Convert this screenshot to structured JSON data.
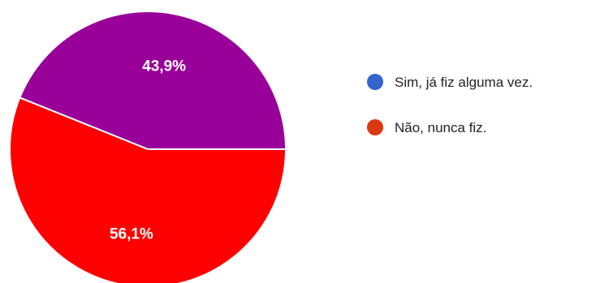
{
  "chart_data": {
    "type": "pie",
    "start_angle_deg": 0,
    "direction": "counterclockwise",
    "slices": [
      {
        "label": "Sim, já fiz alguma vez.",
        "value": 43.9,
        "display": "43,9%",
        "slice_color": "#990099",
        "legend_color": "#3366cc"
      },
      {
        "label": "Não, nunca fiz.",
        "value": 56.1,
        "display": "56,1%",
        "slice_color": "#ff0000",
        "legend_color": "#dc3912"
      }
    ],
    "legend_position": "right"
  }
}
